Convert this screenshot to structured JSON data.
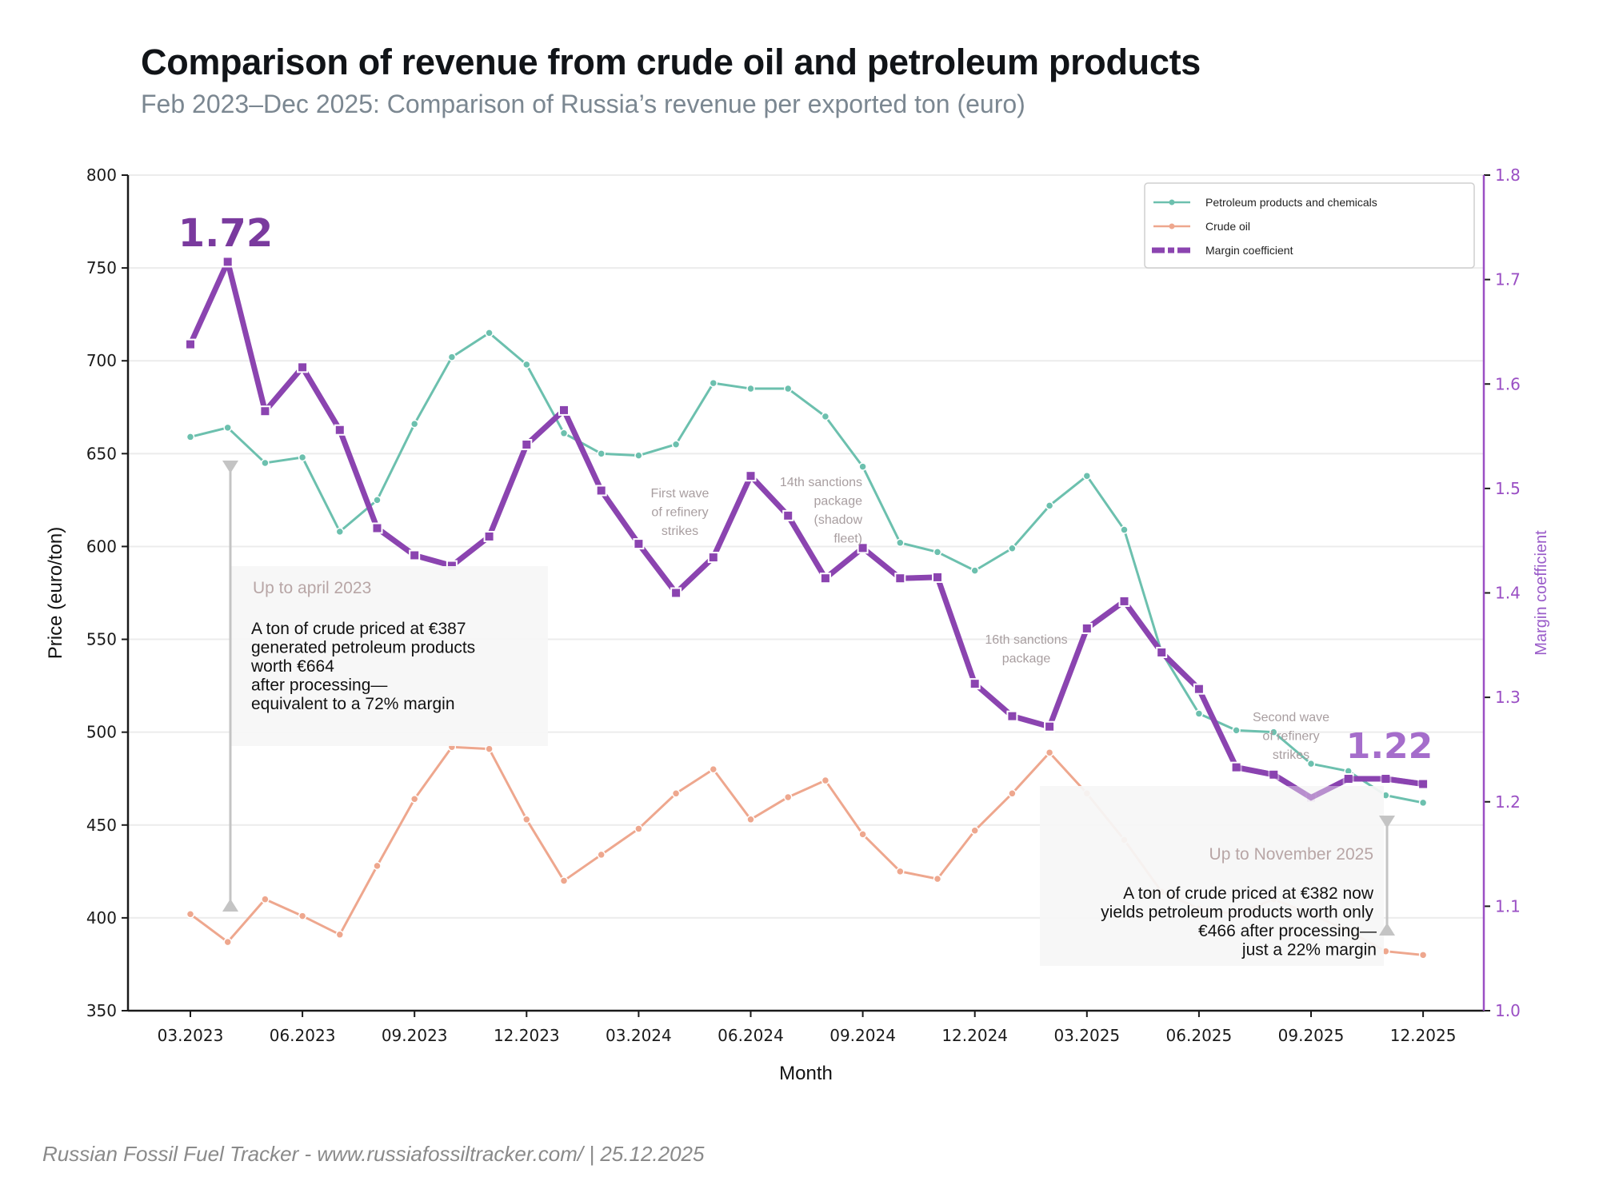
{
  "title": "Comparison of revenue from crude oil and petroleum products",
  "subtitle": "Feb 2023–Dec 2025: Comparison of Russia’s revenue per exported ton (euro)",
  "footer": "Russian Fossil Fuel Tracker - www.russiafossiltracker.com/  |  25.12.2025",
  "chart_data": {
    "type": "line",
    "title": "Comparison of revenue from crude oil and petroleum products",
    "xlabel": "Month",
    "ylabel": "Price (euro/ton)",
    "y2label": "Margin coefficient",
    "ylim": [
      350,
      800
    ],
    "y2lim": [
      1.0,
      1.8
    ],
    "yticks": [
      350,
      400,
      450,
      500,
      550,
      600,
      650,
      700,
      750,
      800
    ],
    "y2ticks": [
      "1.0",
      "1.1",
      "1.2",
      "1.3",
      "1.4",
      "1.5",
      "1.6",
      "1.7",
      "1.8"
    ],
    "grid": true,
    "legend_position": "top-right",
    "x": [
      "03.2023",
      "04.2023",
      "05.2023",
      "06.2023",
      "07.2023",
      "08.2023",
      "09.2023",
      "10.2023",
      "11.2023",
      "12.2023",
      "01.2024",
      "02.2024",
      "03.2024",
      "04.2024",
      "05.2024",
      "06.2024",
      "07.2024",
      "08.2024",
      "09.2024",
      "10.2024",
      "11.2024",
      "12.2024",
      "01.2025",
      "02.2025",
      "03.2025",
      "04.2025",
      "05.2025",
      "06.2025",
      "07.2025",
      "08.2025",
      "09.2025",
      "10.2025",
      "11.2025",
      "12.2025"
    ],
    "xticks": [
      "03.2023",
      "06.2023",
      "09.2023",
      "12.2023",
      "03.2024",
      "06.2024",
      "09.2024",
      "12.2024",
      "03.2025",
      "06.2025",
      "09.2025",
      "12.2025"
    ],
    "series": [
      {
        "name": "Petroleum products and chemicals",
        "axis": "left",
        "color": "#6cc0ae",
        "values": [
          659,
          664,
          645,
          648,
          608,
          625,
          666,
          702,
          715,
          698,
          661,
          650,
          649,
          655,
          688,
          685,
          685,
          670,
          643,
          602,
          597,
          587,
          599,
          622,
          638,
          609,
          543,
          510,
          501,
          500,
          483,
          479,
          466,
          462
        ]
      },
      {
        "name": "Crude oil",
        "axis": "left",
        "color": "#eea78e",
        "values": [
          402,
          387,
          410,
          401,
          391,
          428,
          464,
          492,
          491,
          453,
          420,
          434,
          448,
          467,
          480,
          453,
          465,
          474,
          445,
          425,
          421,
          447,
          467,
          489,
          467,
          442,
          414,
          405,
          402,
          410,
          402,
          393,
          382,
          380
        ]
      },
      {
        "name": "Margin coefficient",
        "axis": "right",
        "color": "#8b44b0",
        "values": [
          1.638,
          1.717,
          1.574,
          1.616,
          1.556,
          1.462,
          1.436,
          1.426,
          1.454,
          1.542,
          1.575,
          1.498,
          1.447,
          1.4,
          1.434,
          1.512,
          1.474,
          1.414,
          1.443,
          1.414,
          1.415,
          1.313,
          1.282,
          1.272,
          1.366,
          1.392,
          1.343,
          1.308,
          1.233,
          1.226,
          1.204,
          1.222,
          1.222,
          1.217
        ]
      }
    ],
    "annotations": {
      "peak_label": "1.72",
      "end_label": "1.22",
      "events": [
        {
          "lines": [
            "First wave",
            "of refinery",
            "strikes"
          ],
          "month": "04.2024"
        },
        {
          "lines": [
            "14th sanctions",
            "package",
            "(shadow",
            "fleet)"
          ],
          "month": "07.2024"
        },
        {
          "lines": [
            "16th sanctions",
            "package"
          ],
          "month": "01.2025"
        },
        {
          "lines": [
            "Second wave",
            "of refinery",
            "strikes"
          ],
          "month": "09.2025"
        }
      ],
      "box_start": {
        "heading": "Up to april 2023",
        "lines": [
          "A ton of crude priced at €387",
          "generated petroleum products",
          "worth €664",
          "after processing—",
          "equivalent to a 72% margin"
        ]
      },
      "box_end": {
        "heading": "Up to November 2025",
        "lines": [
          "A ton of crude priced at €382 now",
          "yields petroleum products worth only",
          "€466 after processing—",
          "just a 22% margin"
        ]
      }
    }
  },
  "colors": {
    "petroleum": "#6cc0ae",
    "crude": "#eea78e",
    "margin": "#8b44b0",
    "margin_label_peak": "#7a3a9e",
    "margin_label_end": "#a56dcb",
    "right_axis": "#9a4fc4"
  }
}
